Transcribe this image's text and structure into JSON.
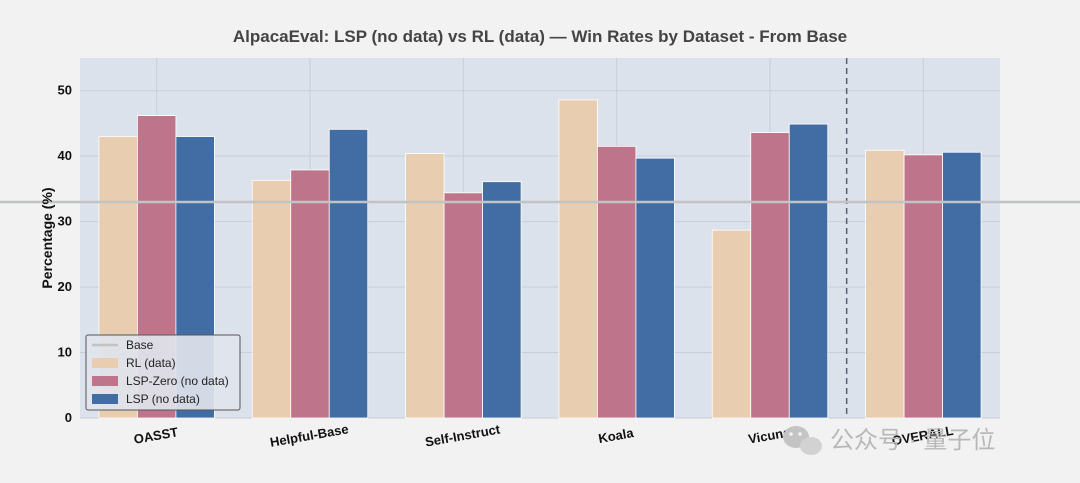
{
  "chart_data": {
    "type": "bar",
    "title": "AlpacaEval: LSP (no data) vs RL (data) — Win Rates by Dataset - From Base",
    "xlabel": "",
    "ylabel": "Percentage (%)",
    "ylim": [
      0,
      55
    ],
    "yticks": [
      0,
      10,
      20,
      30,
      40,
      50
    ],
    "categories": [
      "OASST",
      "Helpful-Base",
      "Self-Instruct",
      "Koala",
      "Vicuna",
      "OVERALL"
    ],
    "series": [
      {
        "name": "RL (data)",
        "color": "#e8cdb0",
        "values": [
          43.0,
          36.3,
          40.4,
          48.6,
          28.7,
          40.9
        ]
      },
      {
        "name": "LSP-Zero (no data)",
        "color": "#be748a",
        "values": [
          46.2,
          37.9,
          34.4,
          41.5,
          43.6,
          40.2
        ]
      },
      {
        "name": "LSP (no data)",
        "color": "#416ca4",
        "values": [
          43.0,
          44.1,
          36.1,
          39.7,
          44.9,
          40.6
        ]
      }
    ],
    "baseline": {
      "name": "Base",
      "value": 33.0,
      "color": "#c0c4c4"
    },
    "separator": "dashed line before OVERALL",
    "grid": true,
    "legend": "bottom-left"
  },
  "watermark": {
    "text": "公众号 · 量子位"
  }
}
